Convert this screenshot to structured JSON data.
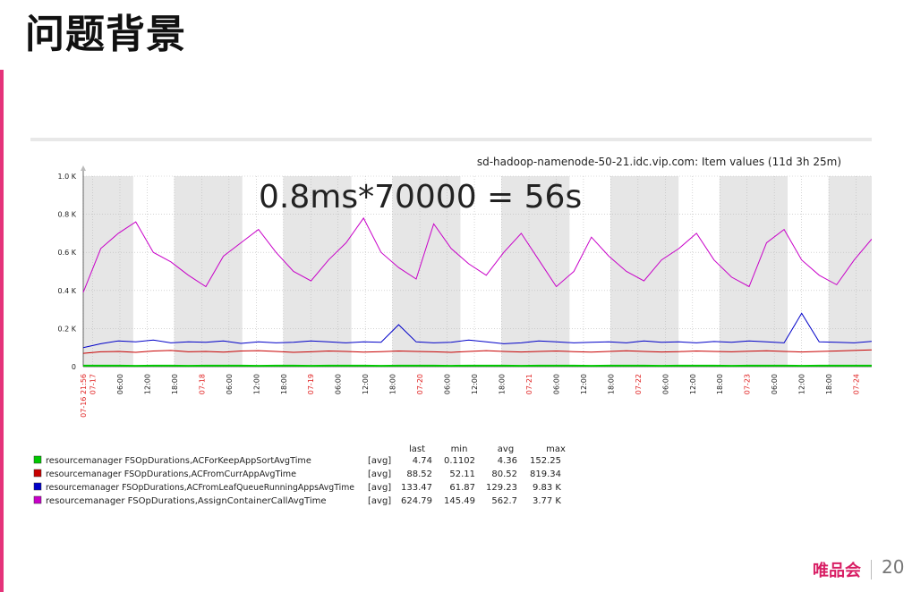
{
  "slide": {
    "title": "问题背景",
    "annotation": "0.8ms*70000 = 56s",
    "brand": "唯品会",
    "page_number": "20",
    "accent_color": "#e5337a"
  },
  "chart_data": {
    "type": "line",
    "title": "sd-hadoop-namenode-50-21.idc.vip.com: Item values (11d 3h 25m)",
    "y_ticks": [
      "0",
      "0.2 K",
      "0.4 K",
      "0.6 K",
      "0.8 K",
      "1.0 K"
    ],
    "ylim": [
      0,
      1000
    ],
    "x_ticks": [
      {
        "label": "07-16 21:56",
        "h": 0,
        "red": true
      },
      {
        "label": "07-17",
        "h": 2.07,
        "red": true
      },
      {
        "label": "06:00",
        "h": 8.07
      },
      {
        "label": "12:00",
        "h": 14.07
      },
      {
        "label": "18:00",
        "h": 20.07
      },
      {
        "label": "07-18",
        "h": 26.07,
        "red": true
      },
      {
        "label": "06:00",
        "h": 32.07
      },
      {
        "label": "12:00",
        "h": 38.07
      },
      {
        "label": "18:00",
        "h": 44.07
      },
      {
        "label": "07-19",
        "h": 50.07,
        "red": true
      },
      {
        "label": "06:00",
        "h": 56.07
      },
      {
        "label": "12:00",
        "h": 62.07
      },
      {
        "label": "18:00",
        "h": 68.07
      },
      {
        "label": "07-20",
        "h": 74.07,
        "red": true
      },
      {
        "label": "06:00",
        "h": 80.07
      },
      {
        "label": "12:00",
        "h": 86.07
      },
      {
        "label": "18:00",
        "h": 92.07
      },
      {
        "label": "07-21",
        "h": 98.07,
        "red": true
      },
      {
        "label": "06:00",
        "h": 104.07
      },
      {
        "label": "12:00",
        "h": 110.07
      },
      {
        "label": "18:00",
        "h": 116.07
      },
      {
        "label": "07-22",
        "h": 122.07,
        "red": true
      },
      {
        "label": "06:00",
        "h": 128.07
      },
      {
        "label": "12:00",
        "h": 134.07
      },
      {
        "label": "18:00",
        "h": 140.07
      },
      {
        "label": "07-23",
        "h": 146.07,
        "red": true
      },
      {
        "label": "06:00",
        "h": 152.07
      },
      {
        "label": "12:00",
        "h": 158.07
      },
      {
        "label": "18:00",
        "h": 164.07
      },
      {
        "label": "07-24",
        "h": 170.07,
        "red": true
      }
    ],
    "x_range_hours": [
      0,
      173.5
    ],
    "shaded_periods_hours": [
      [
        0,
        11
      ],
      [
        20,
        35
      ],
      [
        44,
        59
      ],
      [
        68,
        83
      ],
      [
        92,
        107
      ],
      [
        116,
        131
      ],
      [
        140,
        155
      ],
      [
        164,
        173.5
      ]
    ],
    "legend_header": [
      "last",
      "min",
      "avg",
      "max"
    ],
    "series": [
      {
        "name": "resourcemanager FSOpDurations,ACForKeepAppSortAvgTime",
        "color": "#00c800",
        "func": "[avg]",
        "last": "4.74",
        "min": "0.1102",
        "avg": "4.36",
        "max": "152.25",
        "values": [
          5,
          5,
          5,
          4,
          5,
          5,
          4,
          5,
          5,
          5,
          4,
          5,
          5,
          4,
          5,
          5,
          5,
          4,
          5,
          5,
          5,
          4,
          5,
          5,
          5,
          4,
          5,
          5,
          5,
          4,
          5,
          5,
          5,
          4,
          5,
          5,
          5,
          4,
          5,
          5,
          5,
          4,
          5,
          5,
          5,
          5
        ]
      },
      {
        "name": "resourcemanager FSOpDurations,ACFromCurrAppAvgTime",
        "color": "#c80000",
        "func": "[avg]",
        "last": "88.52",
        "min": "52.11",
        "avg": "80.52",
        "max": "819.34",
        "values": [
          70,
          78,
          80,
          75,
          82,
          85,
          78,
          80,
          76,
          82,
          84,
          80,
          75,
          78,
          82,
          80,
          76,
          79,
          82,
          80,
          78,
          75,
          80,
          84,
          80,
          77,
          80,
          82,
          79,
          76,
          80,
          83,
          80,
          77,
          79,
          82,
          80,
          78,
          81,
          83,
          80,
          77,
          80,
          82,
          85,
          88
        ]
      },
      {
        "name": "resourcemanager FSOpDurations,ACFromLeafQueueRunningAppsAvgTime",
        "color": "#0000c8",
        "func": "[avg]",
        "last": "133.47",
        "min": "61.87",
        "avg": "129.23",
        "max": "9.83 K",
        "values": [
          100,
          120,
          135,
          130,
          140,
          125,
          130,
          128,
          135,
          122,
          130,
          125,
          128,
          135,
          130,
          125,
          130,
          128,
          220,
          130,
          125,
          128,
          140,
          130,
          120,
          125,
          135,
          130,
          125,
          128,
          130,
          125,
          135,
          128,
          130,
          125,
          132,
          128,
          135,
          130,
          125,
          280,
          130,
          128,
          125,
          133
        ]
      },
      {
        "name": "resourcemanager FSOpDurations,AssignContainerCallAvgTime",
        "color": "#c800c8",
        "func": "[avg]",
        "last": "624.79",
        "min": "145.49",
        "avg": "562.7",
        "max": "3.77 K",
        "values": [
          390,
          620,
          700,
          760,
          600,
          550,
          480,
          420,
          580,
          650,
          720,
          600,
          500,
          450,
          560,
          650,
          780,
          600,
          520,
          460,
          750,
          620,
          540,
          480,
          600,
          700,
          560,
          420,
          500,
          680,
          580,
          500,
          450,
          560,
          620,
          700,
          560,
          470,
          420,
          650,
          720,
          560,
          480,
          430,
          560,
          670
        ]
      }
    ]
  }
}
